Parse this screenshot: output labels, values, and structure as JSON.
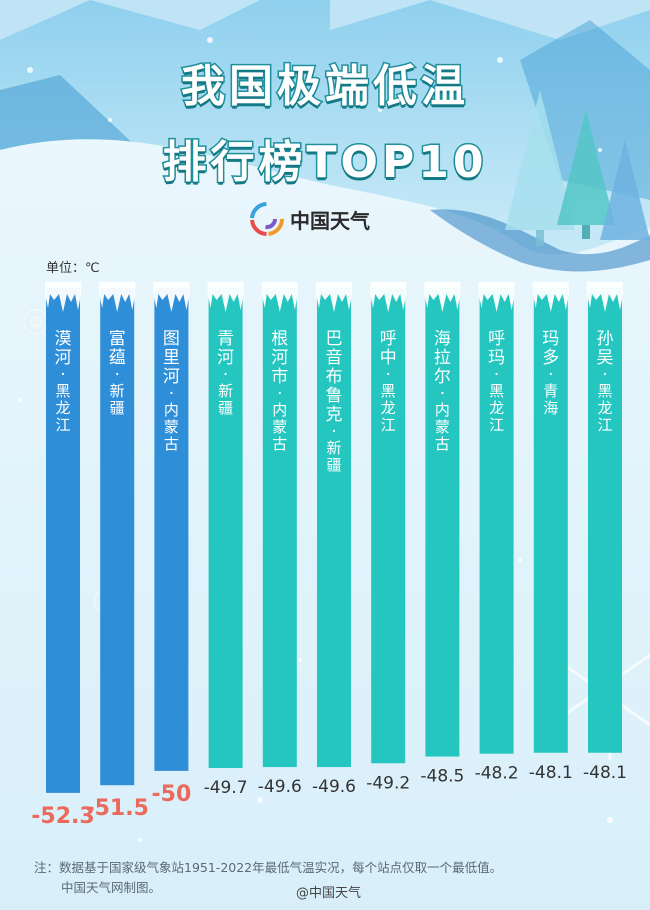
{
  "title_line1": "我国极端低温",
  "title_line2": "排行榜TOP10",
  "logo_text": "中国天气",
  "unit_label": "单位：℃",
  "note_line1": "注：数据基于国家级气象站1951-2022年最低气温实况，每个站点仅取一个最低值。",
  "note_line2": "中国天气网制图。",
  "weibo_handle": "@中国天气",
  "colors": {
    "bar_blue": "#2f8ed8",
    "bar_teal": "#25c6c0",
    "label_red": "#ec6a5c",
    "label_gray": "#333333",
    "title_stroke": "#1e8f9b"
  },
  "chart_data": {
    "type": "bar",
    "orientation": "vertical-downward",
    "categories": [
      "漠河·黑龙江",
      "富蕴·新疆",
      "图里河·内蒙古",
      "青河·新疆",
      "根河市·内蒙古",
      "巴音布鲁克·新疆",
      "呼中·黑龙江",
      "海拉尔·内蒙古",
      "呼玛·黑龙江",
      "玛多·青海",
      "孙吴·黑龙江"
    ],
    "values": [
      -52.3,
      -51.5,
      -50,
      -49.7,
      -49.6,
      -49.6,
      -49.2,
      -48.5,
      -48.2,
      -48.1,
      -48.1
    ],
    "value_labels": [
      "-52.3",
      "-51.5",
      "-50",
      "-49.7",
      "-49.6",
      "-49.6",
      "-49.2",
      "-48.5",
      "-48.2",
      "-48.1",
      "-48.1"
    ],
    "highlight": [
      true,
      true,
      true,
      false,
      false,
      false,
      false,
      false,
      false,
      false,
      false
    ],
    "unit": "℃",
    "ylim": [
      -53,
      -47
    ]
  }
}
